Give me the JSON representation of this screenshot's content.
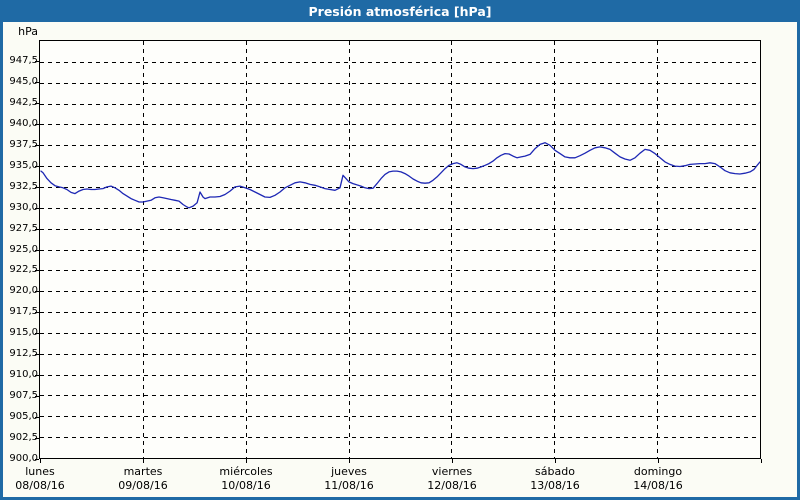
{
  "window": {
    "title": "Presión atmosférica [hPa]",
    "colors": {
      "titlebar": "#1F6AA5",
      "frame": "#1F6AA5",
      "background": "#FBFCF5",
      "plot_background": "#FEFEFB",
      "grid": "#000000",
      "line": "#1E28B4",
      "text": "#000000",
      "title_text": "#FFFFFF"
    }
  },
  "chart_data": {
    "type": "line",
    "title": "Presión atmosférica [hPa]",
    "unit_label": "hPa",
    "xlabel": "",
    "ylabel": "hPa",
    "grid": "dashed",
    "legend": "none",
    "y_axis": {
      "min": 900,
      "max": 950,
      "tick_min": 900,
      "tick_max": 947.5,
      "tick_step": 2.5,
      "decimal_separator": ","
    },
    "x_axis": {
      "range_days": [
        0,
        7
      ],
      "days": [
        {
          "name": "lunes",
          "date": "08/08/16"
        },
        {
          "name": "martes",
          "date": "09/08/16"
        },
        {
          "name": "miércoles",
          "date": "10/08/16"
        },
        {
          "name": "jueves",
          "date": "11/08/16"
        },
        {
          "name": "viernes",
          "date": "12/08/16"
        },
        {
          "name": "sábado",
          "date": "13/08/16"
        },
        {
          "name": "domingo",
          "date": "14/08/16"
        }
      ]
    },
    "series": [
      {
        "name": "Presión atmosférica",
        "color": "#1E28B4",
        "points": [
          [
            0.01,
            934.4
          ],
          [
            0.029,
            934.2
          ],
          [
            0.068,
            933.5
          ],
          [
            0.107,
            933.0
          ],
          [
            0.146,
            932.65
          ],
          [
            0.185,
            932.5
          ],
          [
            0.224,
            932.4
          ],
          [
            0.262,
            932.2
          ],
          [
            0.301,
            931.85
          ],
          [
            0.34,
            931.7
          ],
          [
            0.379,
            932.0
          ],
          [
            0.418,
            932.2
          ],
          [
            0.457,
            932.25
          ],
          [
            0.496,
            932.2
          ],
          [
            0.535,
            932.2
          ],
          [
            0.574,
            932.25
          ],
          [
            0.612,
            932.3
          ],
          [
            0.651,
            932.5
          ],
          [
            0.69,
            932.6
          ],
          [
            0.729,
            932.4
          ],
          [
            0.768,
            932.1
          ],
          [
            0.807,
            931.7
          ],
          [
            0.846,
            931.4
          ],
          [
            0.885,
            931.1
          ],
          [
            0.924,
            930.9
          ],
          [
            0.963,
            930.7
          ],
          [
            1.001,
            930.7
          ],
          [
            1.04,
            930.8
          ],
          [
            1.079,
            930.9
          ],
          [
            1.118,
            931.2
          ],
          [
            1.157,
            931.3
          ],
          [
            1.196,
            931.2
          ],
          [
            1.235,
            931.1
          ],
          [
            1.274,
            931.0
          ],
          [
            1.313,
            930.9
          ],
          [
            1.351,
            930.8
          ],
          [
            1.39,
            930.4
          ],
          [
            1.429,
            930.1
          ],
          [
            1.449,
            930.0
          ],
          [
            1.488,
            930.2
          ],
          [
            1.527,
            930.6
          ],
          [
            1.556,
            931.9
          ],
          [
            1.585,
            931.3
          ],
          [
            1.604,
            931.1
          ],
          [
            1.653,
            931.3
          ],
          [
            1.701,
            931.3
          ],
          [
            1.75,
            931.35
          ],
          [
            1.799,
            931.6
          ],
          [
            1.847,
            932.0
          ],
          [
            1.896,
            932.5
          ],
          [
            1.944,
            932.6
          ],
          [
            1.993,
            932.4
          ],
          [
            2.042,
            932.2
          ],
          [
            2.09,
            931.9
          ],
          [
            2.139,
            931.6
          ],
          [
            2.187,
            931.3
          ],
          [
            2.236,
            931.25
          ],
          [
            2.285,
            931.5
          ],
          [
            2.333,
            931.9
          ],
          [
            2.382,
            932.4
          ],
          [
            2.431,
            932.7
          ],
          [
            2.479,
            933.0
          ],
          [
            2.528,
            933.1
          ],
          [
            2.576,
            933.0
          ],
          [
            2.625,
            932.8
          ],
          [
            2.674,
            932.7
          ],
          [
            2.722,
            932.5
          ],
          [
            2.771,
            932.3
          ],
          [
            2.819,
            932.2
          ],
          [
            2.868,
            932.1
          ],
          [
            2.917,
            932.4
          ],
          [
            2.946,
            933.9
          ],
          [
            2.975,
            933.5
          ],
          [
            3.004,
            933.1
          ],
          [
            3.043,
            932.9
          ],
          [
            3.082,
            932.75
          ],
          [
            3.121,
            932.6
          ],
          [
            3.16,
            932.4
          ],
          [
            3.199,
            932.3
          ],
          [
            3.238,
            932.35
          ],
          [
            3.276,
            932.9
          ],
          [
            3.315,
            933.5
          ],
          [
            3.354,
            934.0
          ],
          [
            3.393,
            934.3
          ],
          [
            3.432,
            934.4
          ],
          [
            3.471,
            934.4
          ],
          [
            3.51,
            934.3
          ],
          [
            3.549,
            934.1
          ],
          [
            3.588,
            933.8
          ],
          [
            3.627,
            933.45
          ],
          [
            3.665,
            933.2
          ],
          [
            3.704,
            933.0
          ],
          [
            3.743,
            932.95
          ],
          [
            3.782,
            933.0
          ],
          [
            3.821,
            933.3
          ],
          [
            3.86,
            933.7
          ],
          [
            3.899,
            934.2
          ],
          [
            3.938,
            934.7
          ],
          [
            3.977,
            935.1
          ],
          [
            4.015,
            935.3
          ],
          [
            4.054,
            935.4
          ],
          [
            4.093,
            935.2
          ],
          [
            4.132,
            934.9
          ],
          [
            4.171,
            934.75
          ],
          [
            4.21,
            934.7
          ],
          [
            4.249,
            934.75
          ],
          [
            4.288,
            934.9
          ],
          [
            4.327,
            935.1
          ],
          [
            4.365,
            935.3
          ],
          [
            4.404,
            935.6
          ],
          [
            4.443,
            936.0
          ],
          [
            4.482,
            936.3
          ],
          [
            4.521,
            936.5
          ],
          [
            4.56,
            936.45
          ],
          [
            4.599,
            936.2
          ],
          [
            4.638,
            936.0
          ],
          [
            4.677,
            936.1
          ],
          [
            4.715,
            936.2
          ],
          [
            4.764,
            936.4
          ],
          [
            4.813,
            937.1
          ],
          [
            4.861,
            937.6
          ],
          [
            4.91,
            937.8
          ],
          [
            4.958,
            937.5
          ],
          [
            5.007,
            936.9
          ],
          [
            5.056,
            936.5
          ],
          [
            5.104,
            936.1
          ],
          [
            5.153,
            936.0
          ],
          [
            5.201,
            936.0
          ],
          [
            5.25,
            936.25
          ],
          [
            5.299,
            936.55
          ],
          [
            5.347,
            936.9
          ],
          [
            5.396,
            937.2
          ],
          [
            5.444,
            937.3
          ],
          [
            5.493,
            937.2
          ],
          [
            5.542,
            937.0
          ],
          [
            5.59,
            936.55
          ],
          [
            5.639,
            936.1
          ],
          [
            5.687,
            935.85
          ],
          [
            5.736,
            935.7
          ],
          [
            5.785,
            936.0
          ],
          [
            5.833,
            936.55
          ],
          [
            5.882,
            937.0
          ],
          [
            5.93,
            936.9
          ],
          [
            5.979,
            936.5
          ],
          [
            6.028,
            936.0
          ],
          [
            6.076,
            935.5
          ],
          [
            6.125,
            935.2
          ],
          [
            6.173,
            935.0
          ],
          [
            6.222,
            934.95
          ],
          [
            6.271,
            935.05
          ],
          [
            6.319,
            935.2
          ],
          [
            6.368,
            935.25
          ],
          [
            6.417,
            935.3
          ],
          [
            6.465,
            935.3
          ],
          [
            6.514,
            935.4
          ],
          [
            6.562,
            935.3
          ],
          [
            6.611,
            934.9
          ],
          [
            6.66,
            934.45
          ],
          [
            6.708,
            934.2
          ],
          [
            6.757,
            934.1
          ],
          [
            6.805,
            934.05
          ],
          [
            6.854,
            934.15
          ],
          [
            6.903,
            934.3
          ],
          [
            6.942,
            934.6
          ],
          [
            6.98,
            935.2
          ],
          [
            7.0,
            935.5
          ]
        ]
      }
    ]
  }
}
